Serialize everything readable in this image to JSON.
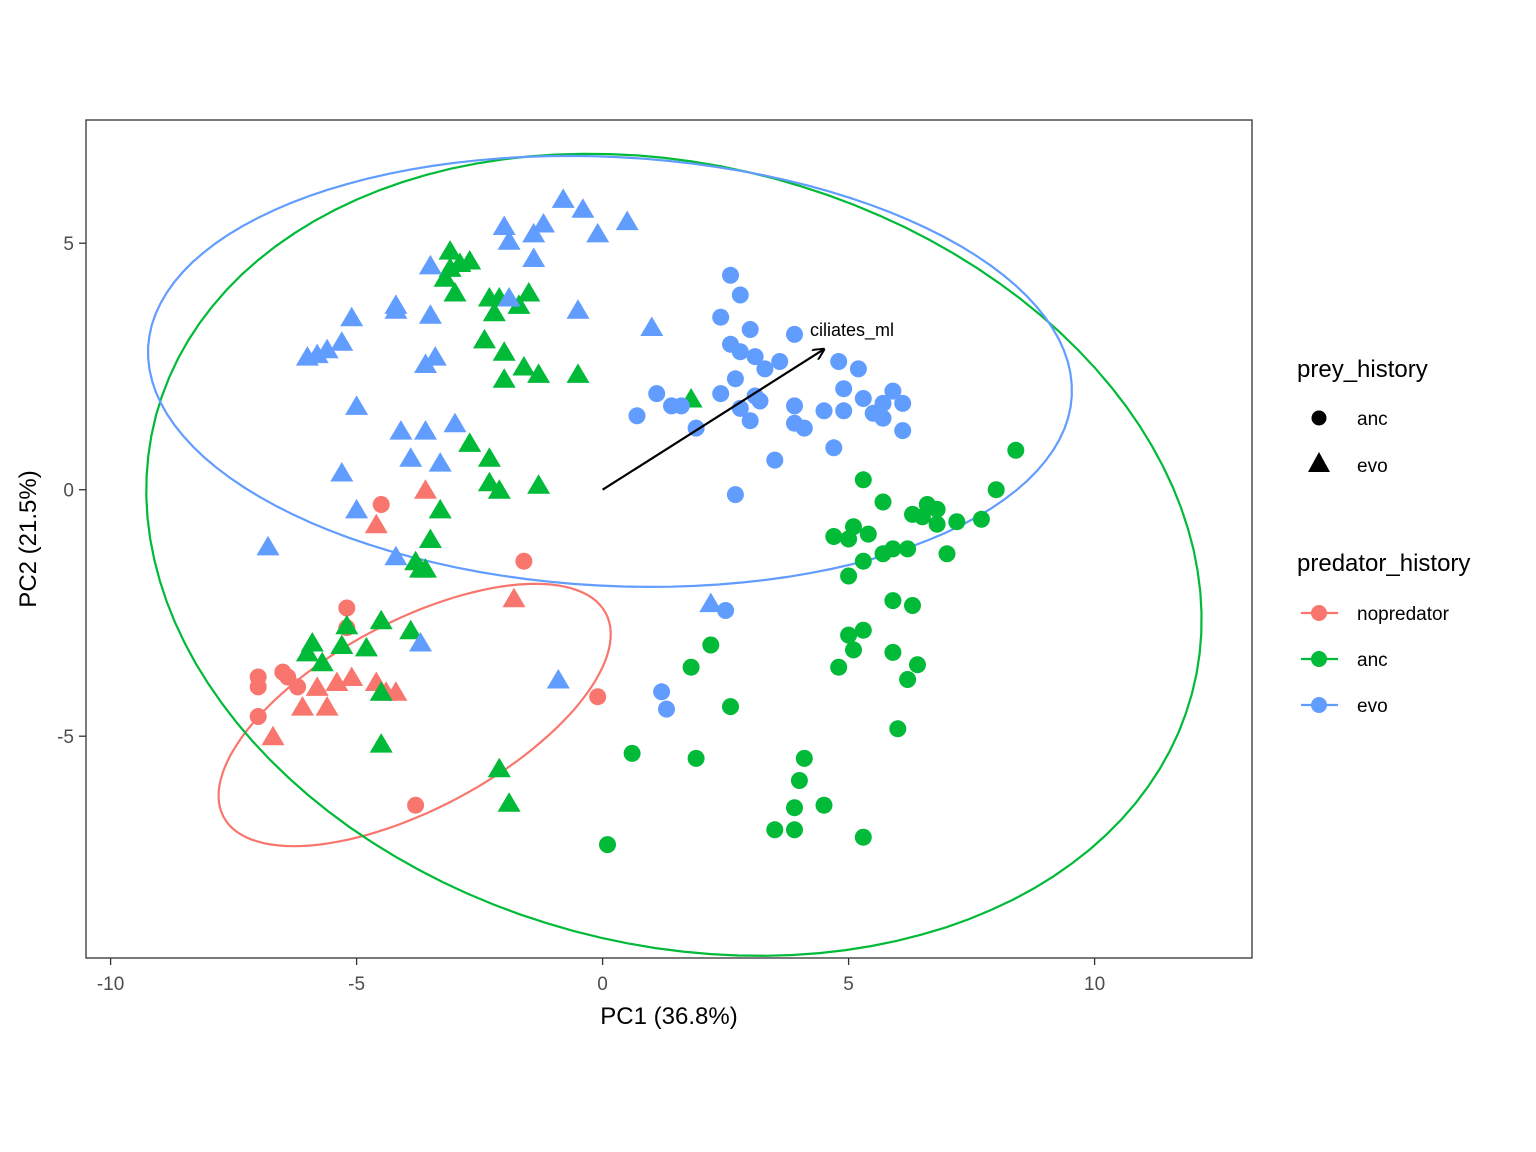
{
  "chart_data": {
    "type": "scatter",
    "xlabel": "PC1 (36.8%)",
    "ylabel": "PC2 (21.5%)",
    "xlim": [
      -10.5,
      13.2
    ],
    "ylim": [
      -9.5,
      7.5
    ],
    "x_ticks": [
      -10,
      -5,
      0,
      5,
      10
    ],
    "x_tick_labels": [
      "-10",
      "-5",
      "0",
      "5",
      "10"
    ],
    "y_ticks": [
      -5,
      0,
      5
    ],
    "y_tick_labels": [
      "-5",
      "0",
      "5"
    ],
    "grid": false,
    "legend_position": "right",
    "legends": {
      "shape": {
        "title": "prey_history",
        "items": [
          {
            "label": "anc",
            "shape": "circle"
          },
          {
            "label": "evo",
            "shape": "triangle"
          }
        ]
      },
      "color": {
        "title": "predator_history",
        "items": [
          {
            "label": "nopredator",
            "color": "#F8766D"
          },
          {
            "label": "anc",
            "color": "#00BA38"
          },
          {
            "label": "evo",
            "color": "#619CFF"
          }
        ]
      }
    },
    "arrow": {
      "label": "ciliates_ml",
      "from": [
        0,
        0
      ],
      "to": [
        4.5,
        2.85
      ]
    },
    "ellipses": [
      {
        "group": "nopredator",
        "color": "#F8766D",
        "cx": -3.82,
        "cy": -4.57,
        "rx": 4.4,
        "ry": 1.9,
        "angle_deg": 28
      },
      {
        "group": "anc",
        "color": "#00BA38",
        "cx": 1.45,
        "cy": -1.32,
        "rx": 10.9,
        "ry": 7.9,
        "angle_deg": -15
      },
      {
        "group": "evo",
        "color": "#619CFF",
        "cx": 0.15,
        "cy": 2.4,
        "rx": 9.4,
        "ry": 4.35,
        "angle_deg": -3
      }
    ],
    "series": [
      {
        "name": "nopredator",
        "color": "#F8766D",
        "circles": [
          [
            -7.0,
            -3.8
          ],
          [
            -7.0,
            -4.0
          ],
          [
            -6.5,
            -3.7
          ],
          [
            -6.4,
            -3.8
          ],
          [
            -6.2,
            -4.0
          ],
          [
            -7.0,
            -4.6
          ],
          [
            -5.2,
            -2.4
          ],
          [
            -5.2,
            -2.8
          ],
          [
            -4.5,
            -0.3
          ],
          [
            -1.6,
            -1.45
          ],
          [
            -0.1,
            -4.2
          ],
          [
            -3.8,
            -6.4
          ]
        ],
        "triangles": [
          [
            -6.7,
            -5.0
          ],
          [
            -6.1,
            -4.4
          ],
          [
            -5.8,
            -4.0
          ],
          [
            -5.6,
            -4.4
          ],
          [
            -5.4,
            -3.9
          ],
          [
            -5.1,
            -3.8
          ],
          [
            -4.6,
            -3.9
          ],
          [
            -4.4,
            -4.1
          ],
          [
            -4.2,
            -4.1
          ],
          [
            -4.6,
            -0.7
          ],
          [
            -3.6,
            0.0
          ],
          [
            -1.8,
            -2.2
          ]
        ]
      },
      {
        "name": "anc",
        "color": "#00BA38",
        "circles": [
          [
            5.3,
            0.2
          ],
          [
            5.7,
            -0.25
          ],
          [
            6.6,
            -0.3
          ],
          [
            6.8,
            -0.4
          ],
          [
            6.3,
            -0.5
          ],
          [
            6.5,
            -0.55
          ],
          [
            6.8,
            -0.7
          ],
          [
            7.2,
            -0.65
          ],
          [
            7.7,
            -0.6
          ],
          [
            8.0,
            0.0
          ],
          [
            8.4,
            0.8
          ],
          [
            4.7,
            -0.95
          ],
          [
            5.0,
            -1.0
          ],
          [
            5.1,
            -0.75
          ],
          [
            5.4,
            -0.9
          ],
          [
            5.7,
            -1.3
          ],
          [
            5.9,
            -1.2
          ],
          [
            6.2,
            -1.2
          ],
          [
            7.0,
            -1.3
          ],
          [
            5.3,
            -1.45
          ],
          [
            5.0,
            -1.75
          ],
          [
            5.9,
            -2.25
          ],
          [
            6.3,
            -2.35
          ],
          [
            5.0,
            -2.95
          ],
          [
            5.1,
            -3.25
          ],
          [
            5.3,
            -2.85
          ],
          [
            5.9,
            -3.3
          ],
          [
            6.4,
            -3.55
          ],
          [
            6.2,
            -3.85
          ],
          [
            4.8,
            -3.6
          ],
          [
            6.0,
            -4.85
          ],
          [
            1.8,
            -3.6
          ],
          [
            2.2,
            -3.15
          ],
          [
            2.6,
            -4.4
          ],
          [
            0.6,
            -5.35
          ],
          [
            1.9,
            -5.45
          ],
          [
            4.1,
            -5.45
          ],
          [
            4.0,
            -5.9
          ],
          [
            3.9,
            -6.45
          ],
          [
            4.5,
            -6.4
          ],
          [
            3.5,
            -6.9
          ],
          [
            3.9,
            -6.9
          ],
          [
            5.3,
            -7.05
          ],
          [
            0.1,
            -7.2
          ]
        ],
        "triangles": [
          [
            -3.1,
            4.85
          ],
          [
            -2.9,
            4.6
          ],
          [
            -2.7,
            4.65
          ],
          [
            -3.1,
            4.5
          ],
          [
            -3.2,
            4.3
          ],
          [
            -3.0,
            4.0
          ],
          [
            -2.3,
            3.9
          ],
          [
            -2.1,
            3.9
          ],
          [
            -1.5,
            4.0
          ],
          [
            -2.2,
            3.6
          ],
          [
            -1.7,
            3.75
          ],
          [
            -2.4,
            3.05
          ],
          [
            -2.0,
            2.8
          ],
          [
            -1.6,
            2.5
          ],
          [
            -1.3,
            2.35
          ],
          [
            -2.0,
            2.25
          ],
          [
            -0.5,
            2.35
          ],
          [
            1.8,
            1.85
          ],
          [
            -2.7,
            0.95
          ],
          [
            -2.3,
            0.65
          ],
          [
            -2.3,
            0.15
          ],
          [
            -2.1,
            0.0
          ],
          [
            -1.3,
            0.1
          ],
          [
            -3.3,
            -0.4
          ],
          [
            -3.5,
            -1.0
          ],
          [
            -3.8,
            -1.45
          ],
          [
            -3.7,
            -1.6
          ],
          [
            -3.6,
            -1.6
          ],
          [
            -5.9,
            -3.1
          ],
          [
            -6.0,
            -3.3
          ],
          [
            -5.7,
            -3.5
          ],
          [
            -5.2,
            -2.75
          ],
          [
            -5.3,
            -3.15
          ],
          [
            -4.8,
            -3.2
          ],
          [
            -4.5,
            -2.65
          ],
          [
            -3.9,
            -2.85
          ],
          [
            -4.5,
            -4.1
          ],
          [
            -4.5,
            -5.15
          ],
          [
            -2.1,
            -5.65
          ],
          [
            -1.9,
            -6.35
          ]
        ]
      },
      {
        "name": "evo",
        "color": "#619CFF",
        "circles": [
          [
            2.6,
            4.35
          ],
          [
            2.8,
            3.95
          ],
          [
            2.4,
            3.5
          ],
          [
            3.0,
            3.25
          ],
          [
            3.9,
            3.15
          ],
          [
            2.6,
            2.95
          ],
          [
            2.8,
            2.8
          ],
          [
            3.1,
            2.7
          ],
          [
            3.3,
            2.45
          ],
          [
            3.6,
            2.6
          ],
          [
            4.8,
            2.6
          ],
          [
            5.2,
            2.45
          ],
          [
            2.7,
            2.25
          ],
          [
            3.1,
            1.9
          ],
          [
            2.4,
            1.95
          ],
          [
            1.1,
            1.95
          ],
          [
            1.4,
            1.7
          ],
          [
            1.6,
            1.7
          ],
          [
            2.8,
            1.65
          ],
          [
            3.2,
            1.8
          ],
          [
            3.9,
            1.7
          ],
          [
            4.5,
            1.6
          ],
          [
            4.9,
            2.05
          ],
          [
            5.3,
            1.85
          ],
          [
            5.7,
            1.75
          ],
          [
            5.9,
            2.0
          ],
          [
            6.1,
            1.75
          ],
          [
            5.5,
            1.55
          ],
          [
            4.9,
            1.6
          ],
          [
            5.7,
            1.45
          ],
          [
            3.0,
            1.4
          ],
          [
            3.9,
            1.35
          ],
          [
            4.1,
            1.25
          ],
          [
            0.7,
            1.5
          ],
          [
            1.9,
            1.25
          ],
          [
            6.1,
            1.2
          ],
          [
            4.7,
            0.85
          ],
          [
            3.5,
            0.6
          ],
          [
            2.7,
            -0.1
          ],
          [
            2.5,
            -2.45
          ],
          [
            1.2,
            -4.1
          ],
          [
            1.3,
            -4.45
          ]
        ],
        "triangles": [
          [
            -0.8,
            5.9
          ],
          [
            -0.4,
            5.7
          ],
          [
            0.5,
            5.45
          ],
          [
            -0.1,
            5.2
          ],
          [
            -1.2,
            5.4
          ],
          [
            -1.4,
            5.2
          ],
          [
            -2.0,
            5.35
          ],
          [
            -1.9,
            5.05
          ],
          [
            -1.4,
            4.7
          ],
          [
            -3.5,
            4.55
          ],
          [
            -4.2,
            3.75
          ],
          [
            -4.2,
            3.65
          ],
          [
            -3.5,
            3.55
          ],
          [
            -1.9,
            3.9
          ],
          [
            -0.5,
            3.65
          ],
          [
            1.0,
            3.3
          ],
          [
            -5.1,
            3.5
          ],
          [
            -5.3,
            3.0
          ],
          [
            -5.6,
            2.85
          ],
          [
            -5.8,
            2.75
          ],
          [
            -6.0,
            2.7
          ],
          [
            -3.4,
            2.7
          ],
          [
            -3.6,
            2.55
          ],
          [
            -5.0,
            1.7
          ],
          [
            -3.0,
            1.35
          ],
          [
            -3.6,
            1.2
          ],
          [
            -4.1,
            1.2
          ],
          [
            -3.9,
            0.65
          ],
          [
            -3.3,
            0.55
          ],
          [
            -5.3,
            0.35
          ],
          [
            -5.0,
            -0.4
          ],
          [
            -4.2,
            -1.35
          ],
          [
            -6.8,
            -1.15
          ],
          [
            -3.7,
            -3.1
          ],
          [
            -0.9,
            -3.85
          ],
          [
            2.2,
            -2.3
          ]
        ]
      }
    ]
  }
}
